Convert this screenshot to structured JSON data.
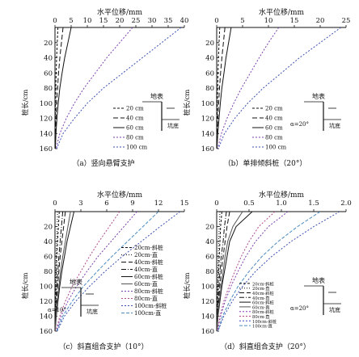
{
  "panels": [
    {
      "id": "a",
      "top_title": "水平位移/mm",
      "caption": "（a）竖向悬臂支护",
      "y_label": "桩长/cm",
      "x_ticks": [
        "0",
        "5",
        "10",
        "15",
        "20",
        "25",
        "30",
        "35",
        "40"
      ],
      "x_range": [
        0,
        40
      ],
      "y_ticks": [
        "20",
        "40",
        "60",
        "80",
        "100",
        "120",
        "140",
        "160"
      ],
      "legend": [
        "20 cm",
        "40 cm",
        "60 cm",
        "80 cm",
        "100 cm"
      ],
      "diagram_labels": [
        "地表",
        "坑底"
      ]
    },
    {
      "id": "b",
      "top_title": "水平位移/mm",
      "caption": "（b）单排倾斜桩（20°）",
      "y_label": "桩长/cm",
      "x_ticks": [
        "0",
        "5",
        "10",
        "15",
        "20",
        "25"
      ],
      "x_range": [
        0,
        25
      ],
      "y_ticks": [
        "20",
        "40",
        "60",
        "80",
        "100",
        "120",
        "140",
        "160"
      ],
      "legend": [
        "20 cm",
        "40 cm",
        "60 cm",
        "80 cm",
        "100 cm"
      ],
      "diagram_labels": [
        "地表",
        "坑底",
        "α=20°"
      ]
    },
    {
      "id": "c",
      "top_title": "水平位移/mm",
      "caption": "（c）斜直组合支护（10°）",
      "y_label": "桩长/cm",
      "x_ticks": [
        "0",
        "3",
        "6",
        "9",
        "12",
        "15"
      ],
      "x_range": [
        0,
        15
      ],
      "y_ticks": [
        "20",
        "40",
        "60",
        "80",
        "100",
        "120",
        "140",
        "160"
      ],
      "legend": [
        "20cm-斜桩",
        "20cm-直",
        "40cm-斜桩",
        "40cm-直",
        "60cm-斜桩",
        "60cm-直",
        "80cm-斜桩",
        "80cm-直",
        "100cm-斜桩",
        "100cm-直"
      ],
      "diagram_labels": [
        "地表",
        "坑底",
        "α=10°"
      ]
    },
    {
      "id": "d",
      "top_title": "水平位移/mm",
      "caption": "（d）斜直组合支护（20°）",
      "y_label": "桩长/cm",
      "x_ticks": [
        "0",
        "0.5",
        "1.0",
        "1.5",
        "2.0"
      ],
      "x_range": [
        0,
        2.0
      ],
      "y_ticks": [
        "20",
        "40",
        "60",
        "80",
        "100",
        "120",
        "140",
        "160"
      ],
      "legend": [
        "20cm-斜桩",
        "20cm-直",
        "40cm-斜桩",
        "40cm-直",
        "60cm-斜桩",
        "60cm-直",
        "80cm-斜桩",
        "80cm-直",
        "100cm-斜桩",
        "100cm-直"
      ],
      "diagram_labels": [
        "地表",
        "坑底",
        "α=20°"
      ]
    }
  ],
  "chart_data": [
    {
      "type": "line",
      "panel": "a",
      "xlabel": "水平位移/mm",
      "ylabel": "桩长/cm",
      "xlim": [
        0,
        40
      ],
      "ylim": [
        0,
        160
      ],
      "x_axis_position": "top",
      "y_inverted": true,
      "y": [
        0,
        20,
        40,
        60,
        80,
        100,
        120,
        140,
        160
      ],
      "series": [
        {
          "name": "20 cm",
          "x": [
            0.9,
            0.7,
            0.5,
            0.35,
            0.25,
            0.15,
            0.1,
            0.05,
            0.0
          ],
          "color": "#111111",
          "dash": "3,2"
        },
        {
          "name": "40 cm",
          "x": [
            2.5,
            2.0,
            1.5,
            1.1,
            0.8,
            0.5,
            0.3,
            0.15,
            0.05
          ],
          "color": "#111111",
          "dash": "6,3"
        },
        {
          "name": "60 cm",
          "x": [
            5.0,
            4.0,
            3.0,
            2.2,
            1.5,
            1.0,
            0.6,
            0.3,
            0.1
          ],
          "color": "#111111",
          "dash": ""
        },
        {
          "name": "80 cm",
          "x": [
            24.0,
            20.0,
            16.0,
            12.5,
            9.0,
            6.0,
            3.5,
            1.5,
            0.3
          ],
          "color": "#7a3fb0",
          "dash": "2,2"
        },
        {
          "name": "100 cm",
          "x": [
            39.0,
            33.0,
            27.0,
            21.0,
            15.0,
            10.0,
            6.0,
            2.5,
            0.5
          ],
          "color": "#3a4fb5",
          "dash": "2,2"
        }
      ]
    },
    {
      "type": "line",
      "panel": "b",
      "xlabel": "水平位移/mm",
      "ylabel": "桩长/cm",
      "xlim": [
        0,
        25
      ],
      "ylim": [
        0,
        160
      ],
      "x_axis_position": "top",
      "y_inverted": true,
      "y": [
        0,
        20,
        40,
        60,
        80,
        100,
        120,
        140,
        160
      ],
      "series": [
        {
          "name": "20 cm",
          "x": [
            0.6,
            0.45,
            0.35,
            0.25,
            0.18,
            0.12,
            0.08,
            0.04,
            0.0
          ],
          "color": "#111111",
          "dash": "3,2"
        },
        {
          "name": "40 cm",
          "x": [
            1.6,
            1.3,
            1.0,
            0.75,
            0.55,
            0.38,
            0.22,
            0.1,
            0.02
          ],
          "color": "#111111",
          "dash": "6,3"
        },
        {
          "name": "60 cm",
          "x": [
            2.8,
            2.3,
            1.8,
            1.4,
            1.0,
            0.7,
            0.45,
            0.2,
            0.05
          ],
          "color": "#111111",
          "dash": ""
        },
        {
          "name": "80 cm",
          "x": [
            12.0,
            10.0,
            8.2,
            6.5,
            4.8,
            3.3,
            2.0,
            0.9,
            0.2
          ],
          "color": "#7a3fb0",
          "dash": "2,2"
        },
        {
          "name": "100 cm",
          "x": [
            24.0,
            20.0,
            16.0,
            12.5,
            9.0,
            6.0,
            3.5,
            1.5,
            0.3
          ],
          "color": "#3a4fb5",
          "dash": "2,2"
        }
      ]
    },
    {
      "type": "line",
      "panel": "c",
      "xlabel": "水平位移/mm",
      "ylabel": "桩长/cm",
      "xlim": [
        0,
        15
      ],
      "ylim": [
        0,
        160
      ],
      "x_axis_position": "top",
      "y_inverted": true,
      "y": [
        0,
        20,
        40,
        60,
        80,
        100,
        120,
        140,
        160
      ],
      "series": [
        {
          "name": "20cm-斜桩",
          "x": [
            0.5,
            0.4,
            0.3,
            0.22,
            0.15,
            0.1,
            0.06,
            0.03,
            0.0
          ],
          "color": "#111111",
          "dash": "3,2"
        },
        {
          "name": "20cm-直",
          "x": [
            0.3,
            0.25,
            0.2,
            0.15,
            0.1,
            0.07,
            0.04,
            0.02,
            0.0
          ],
          "color": "#111111",
          "dash": "1,2"
        },
        {
          "name": "40cm-斜桩",
          "x": [
            1.2,
            1.0,
            0.8,
            0.6,
            0.45,
            0.3,
            0.18,
            0.08,
            0.02
          ],
          "color": "#111111",
          "dash": "6,3"
        },
        {
          "name": "40cm-直",
          "x": [
            0.9,
            0.75,
            0.6,
            0.45,
            0.33,
            0.22,
            0.13,
            0.06,
            0.01
          ],
          "color": "#111111",
          "dash": "6,2,1,2"
        },
        {
          "name": "60cm-斜桩",
          "x": [
            2.2,
            1.8,
            1.4,
            1.1,
            0.8,
            0.55,
            0.35,
            0.15,
            0.03
          ],
          "color": "#111111",
          "dash": ""
        },
        {
          "name": "60cm-直",
          "x": [
            1.8,
            1.5,
            1.2,
            0.9,
            0.65,
            0.45,
            0.28,
            0.12,
            0.02
          ],
          "color": "#555555",
          "dash": ""
        },
        {
          "name": "80cm-斜桩",
          "x": [
            9.5,
            8.0,
            6.5,
            5.0,
            3.7,
            2.5,
            1.5,
            0.7,
            0.15
          ],
          "color": "#7a3fb0",
          "dash": "2,2"
        },
        {
          "name": "80cm-直",
          "x": [
            7.5,
            6.3,
            5.1,
            4.0,
            3.0,
            2.0,
            1.2,
            0.55,
            0.1
          ],
          "color": "#b04a8a",
          "dash": "2,2"
        },
        {
          "name": "100cm-斜桩",
          "x": [
            14.5,
            12.2,
            10.0,
            7.8,
            5.8,
            4.0,
            2.4,
            1.1,
            0.25
          ],
          "color": "#3a4fb5",
          "dash": "2,2"
        },
        {
          "name": "100cm-直",
          "x": [
            12.0,
            10.2,
            8.4,
            6.6,
            4.9,
            3.3,
            2.0,
            0.9,
            0.2
          ],
          "color": "#4a8ac0",
          "dash": "4,2"
        }
      ]
    },
    {
      "type": "line",
      "panel": "d",
      "xlabel": "水平位移/mm",
      "ylabel": "桩长/cm",
      "xlim": [
        0,
        2.0
      ],
      "ylim": [
        0,
        160
      ],
      "x_axis_position": "top",
      "y_inverted": true,
      "y": [
        0,
        20,
        40,
        60,
        80,
        100,
        120,
        140,
        160
      ],
      "series": [
        {
          "name": "20cm-斜桩",
          "x": [
            0.08,
            0.06,
            0.05,
            0.04,
            0.03,
            0.02,
            0.01,
            0.005,
            0.0
          ],
          "color": "#111111",
          "dash": "3,2"
        },
        {
          "name": "20cm-直",
          "x": [
            0.05,
            0.04,
            0.03,
            0.025,
            0.02,
            0.015,
            0.01,
            0.005,
            0.0
          ],
          "color": "#111111",
          "dash": "1,2"
        },
        {
          "name": "40cm-斜桩",
          "x": [
            0.2,
            0.16,
            0.13,
            0.1,
            0.07,
            0.05,
            0.03,
            0.015,
            0.003
          ],
          "color": "#111111",
          "dash": "6,3"
        },
        {
          "name": "40cm-直",
          "x": [
            0.15,
            0.12,
            0.1,
            0.07,
            0.05,
            0.035,
            0.02,
            0.01,
            0.002
          ],
          "color": "#111111",
          "dash": "6,2,1,2"
        },
        {
          "name": "60cm-斜桩",
          "x": [
            0.55,
            0.3,
            0.2,
            0.16,
            0.12,
            0.08,
            0.05,
            0.02,
            0.005
          ],
          "color": "#111111",
          "dash": ""
        },
        {
          "name": "60cm-直",
          "x": [
            0.4,
            0.25,
            0.17,
            0.13,
            0.1,
            0.07,
            0.04,
            0.02,
            0.004
          ],
          "color": "#555555",
          "dash": ""
        },
        {
          "name": "80cm-斜桩",
          "x": [
            1.1,
            0.8,
            0.6,
            0.45,
            0.33,
            0.22,
            0.13,
            0.06,
            0.01
          ],
          "color": "#7a3fb0",
          "dash": "2,2"
        },
        {
          "name": "80cm-直",
          "x": [
            0.9,
            0.65,
            0.5,
            0.38,
            0.28,
            0.19,
            0.11,
            0.05,
            0.01
          ],
          "color": "#b04a8a",
          "dash": "2,2"
        },
        {
          "name": "100cm-斜桩",
          "x": [
            1.9,
            1.5,
            1.15,
            0.85,
            0.6,
            0.4,
            0.24,
            0.11,
            0.02
          ],
          "color": "#3a4fb5",
          "dash": "2,2"
        },
        {
          "name": "100cm-直",
          "x": [
            1.6,
            1.25,
            0.95,
            0.7,
            0.5,
            0.33,
            0.2,
            0.09,
            0.02
          ],
          "color": "#4a8ac0",
          "dash": "4,2"
        }
      ]
    }
  ]
}
